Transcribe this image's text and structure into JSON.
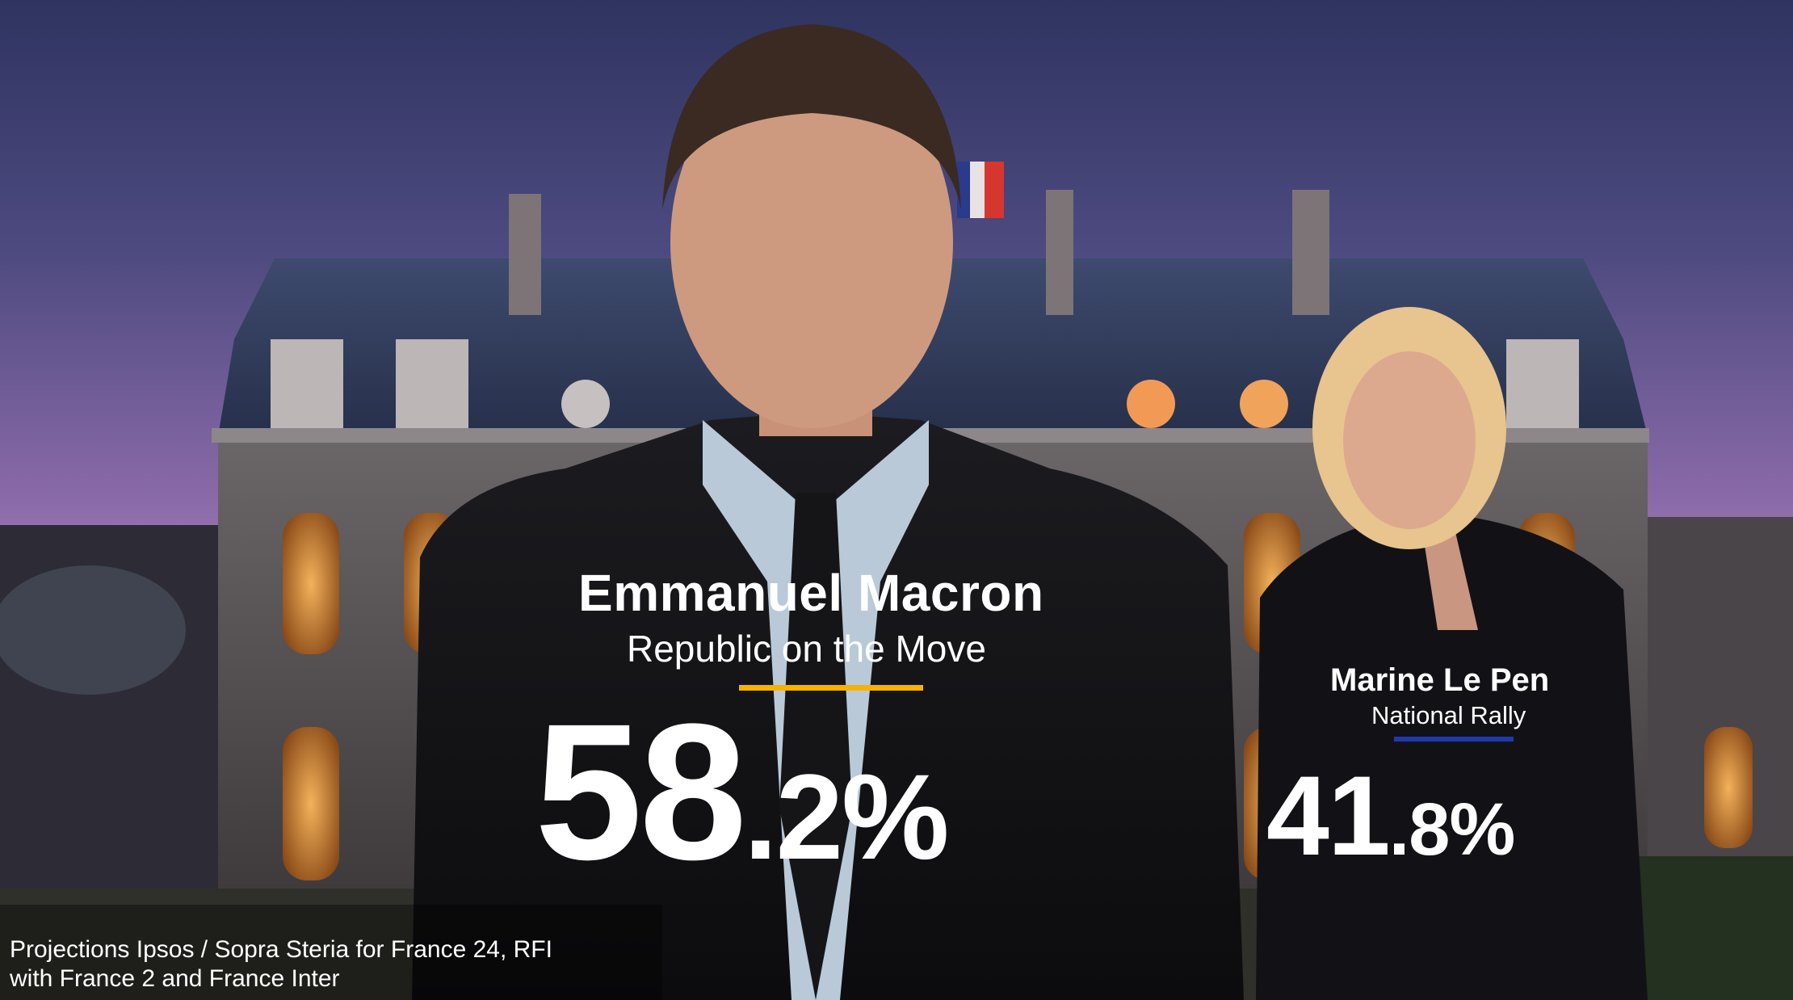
{
  "candidates": [
    {
      "name": "Emmanuel Macron",
      "party": "Republic on the Move",
      "share_int": "58",
      "share_dec": ".2%",
      "underline_color": "#f5b300"
    },
    {
      "name": "Marine Le Pen",
      "party": "National Rally",
      "share_int": "41",
      "share_dec": ".8%",
      "underline_color": "#1f3aa8"
    }
  ],
  "source": {
    "line1": "Projections Ipsos / Sopra Steria for France 24, RFI",
    "line2": "with France 2 and France Inter"
  },
  "colors": {
    "sky_top": "#3a3f6e",
    "sky_bottom": "#c89bd8",
    "text": "#ffffff"
  }
}
